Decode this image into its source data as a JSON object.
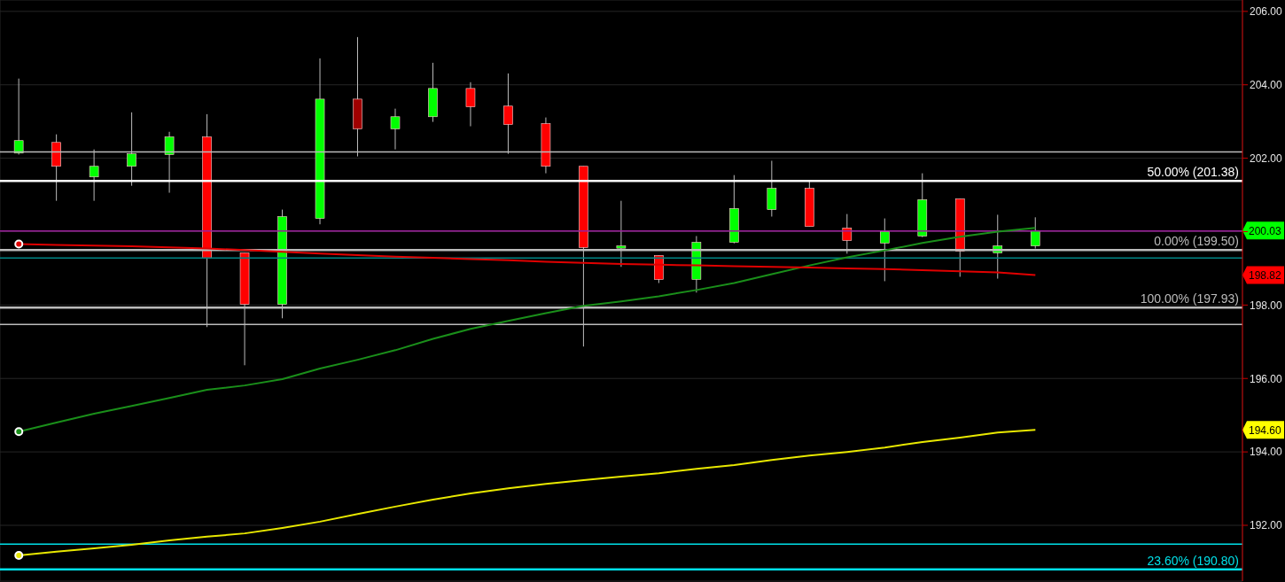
{
  "chart_data": {
    "type": "candlestick",
    "categories": [
      null,
      null,
      null,
      null,
      null,
      null,
      null,
      null,
      null,
      null,
      null,
      null,
      null,
      null,
      null,
      null,
      null,
      null,
      null,
      null,
      null,
      null,
      null,
      null,
      null,
      null,
      null,
      null,
      null,
      null,
      null,
      null,
      null
    ],
    "ohlc": [
      [
        202.14,
        204.17,
        202.1,
        202.48
      ],
      [
        202.43,
        202.65,
        200.84,
        201.78
      ],
      [
        201.49,
        202.24,
        200.84,
        201.78
      ],
      [
        201.78,
        203.25,
        201.25,
        202.12
      ],
      [
        202.1,
        202.72,
        201.06,
        202.58
      ],
      [
        202.58,
        203.2,
        197.4,
        199.28
      ],
      [
        199.42,
        199.42,
        196.36,
        198.02
      ],
      [
        198.02,
        200.6,
        197.64,
        200.41
      ],
      [
        200.36,
        204.72,
        200.2,
        203.61
      ],
      [
        203.61,
        205.3,
        202.05,
        202.8
      ],
      [
        202.8,
        203.35,
        202.24,
        203.13
      ],
      [
        203.13,
        204.6,
        202.99,
        203.9
      ],
      [
        203.9,
        204.07,
        202.87,
        203.4
      ],
      [
        203.42,
        204.31,
        202.12,
        202.92
      ],
      [
        202.94,
        203.11,
        201.59,
        201.78
      ],
      [
        201.78,
        201.78,
        196.87,
        199.57
      ],
      [
        199.55,
        200.84,
        199.04,
        199.61
      ],
      [
        199.35,
        199.35,
        198.6,
        198.7
      ],
      [
        198.7,
        199.88,
        198.34,
        199.71
      ],
      [
        199.71,
        201.54,
        199.68,
        200.63
      ],
      [
        200.6,
        201.93,
        200.41,
        201.18
      ],
      [
        201.18,
        201.37,
        200.14,
        200.14
      ],
      [
        200.1,
        200.48,
        199.4,
        199.76
      ],
      [
        199.69,
        200.36,
        198.65,
        200.0
      ],
      [
        199.88,
        201.59,
        199.85,
        200.87
      ],
      [
        200.89,
        200.89,
        198.77,
        199.47
      ],
      [
        199.42,
        200.46,
        198.72,
        199.61
      ],
      [
        199.61,
        200.39,
        199.54,
        200.03
      ],
      null,
      null,
      null,
      null,
      null
    ],
    "colors": [
      "#00ff00",
      "#ff0000",
      "#00ff00",
      "#00ff00",
      "#00ff00",
      "#ff0000",
      "#ff0000",
      "#00ff00",
      "#00ff00",
      "#a00000",
      "#00ff00",
      "#00ff00",
      "#ff0000",
      "#ff0000",
      "#ff0000",
      "#ff0000",
      "#00ff00",
      "#ff0000",
      "#00ff00",
      "#00ff00",
      "#00ff00",
      "#ff0000",
      "#ff0000",
      "#00ff00",
      "#00ff00",
      "#ff0000",
      "#00ff00",
      "#00ff00",
      null,
      null,
      null,
      null,
      null
    ],
    "series": [
      {
        "type": "line",
        "color": "#1a8f1a",
        "values": [
          194.55,
          194.8,
          195.04,
          195.25,
          195.47,
          195.69,
          195.81,
          195.98,
          196.27,
          196.51,
          196.77,
          197.08,
          197.35,
          197.57,
          197.78,
          197.98,
          198.1,
          198.24,
          198.41,
          198.6,
          198.84,
          199.08,
          199.3,
          199.49,
          199.69,
          199.86,
          200.0,
          200.1,
          null,
          null,
          null,
          null,
          null
        ]
      },
      {
        "type": "line",
        "color": "#e8e800",
        "values": [
          191.18,
          191.28,
          191.37,
          191.47,
          191.59,
          191.69,
          191.78,
          191.93,
          192.1,
          192.31,
          192.51,
          192.7,
          192.87,
          193.01,
          193.13,
          193.23,
          193.33,
          193.42,
          193.54,
          193.64,
          193.78,
          193.9,
          194.0,
          194.12,
          194.27,
          194.39,
          194.53,
          194.6,
          null,
          null,
          null,
          null,
          null
        ]
      },
      {
        "type": "line",
        "color": "#e00000",
        "values": [
          199.66,
          199.64,
          199.62,
          199.6,
          199.57,
          199.54,
          199.5,
          199.45,
          199.4,
          199.36,
          199.32,
          199.29,
          199.25,
          199.22,
          199.18,
          199.15,
          199.12,
          199.1,
          199.08,
          199.06,
          199.04,
          199.02,
          199.0,
          198.98,
          198.95,
          198.92,
          198.89,
          198.82,
          null,
          null,
          null,
          null,
          null
        ]
      }
    ],
    "ylim": [
      190.48,
      206.31
    ],
    "yticks": [
      {
        "value": 192,
        "label": "192.00"
      },
      {
        "value": 194,
        "label": "194.00"
      },
      {
        "value": 196,
        "label": "196.00"
      },
      {
        "value": 198,
        "label": "198.00"
      },
      {
        "value": 200,
        "label": null
      },
      {
        "value": 202,
        "label": "202.00"
      },
      {
        "value": 204,
        "label": "204.00"
      },
      {
        "value": 206,
        "label": "206.00"
      }
    ],
    "tick_labels": "y",
    "grid": true,
    "ref_lines": [
      {
        "axis": "y",
        "value": 202.17,
        "color": "#bbbbbb"
      },
      {
        "axis": "y",
        "value": 201.38,
        "label": "50.00% (201.38)",
        "color": "#ffffff"
      },
      {
        "axis": "y",
        "value": 200.02,
        "color": "#9b1f9b"
      },
      {
        "axis": "y",
        "value": 199.5,
        "label": "0.00% (199.50)",
        "color": "#bbbbbb"
      },
      {
        "axis": "y",
        "value": 199.28,
        "color": "#008585"
      },
      {
        "axis": "y",
        "value": 197.93,
        "label": "100.00% (197.93)",
        "color": "#bbbbbb"
      },
      {
        "axis": "y",
        "value": 197.47,
        "color": "#bbbbbb"
      },
      {
        "axis": "y",
        "value": 191.49,
        "color": "#00e0e8"
      },
      {
        "axis": "y",
        "value": 190.8,
        "label": "23.60% (190.80)",
        "color": "#00e0e8"
      }
    ],
    "annotations": [
      "200.03",
      "198.82",
      "194.60"
    ]
  }
}
